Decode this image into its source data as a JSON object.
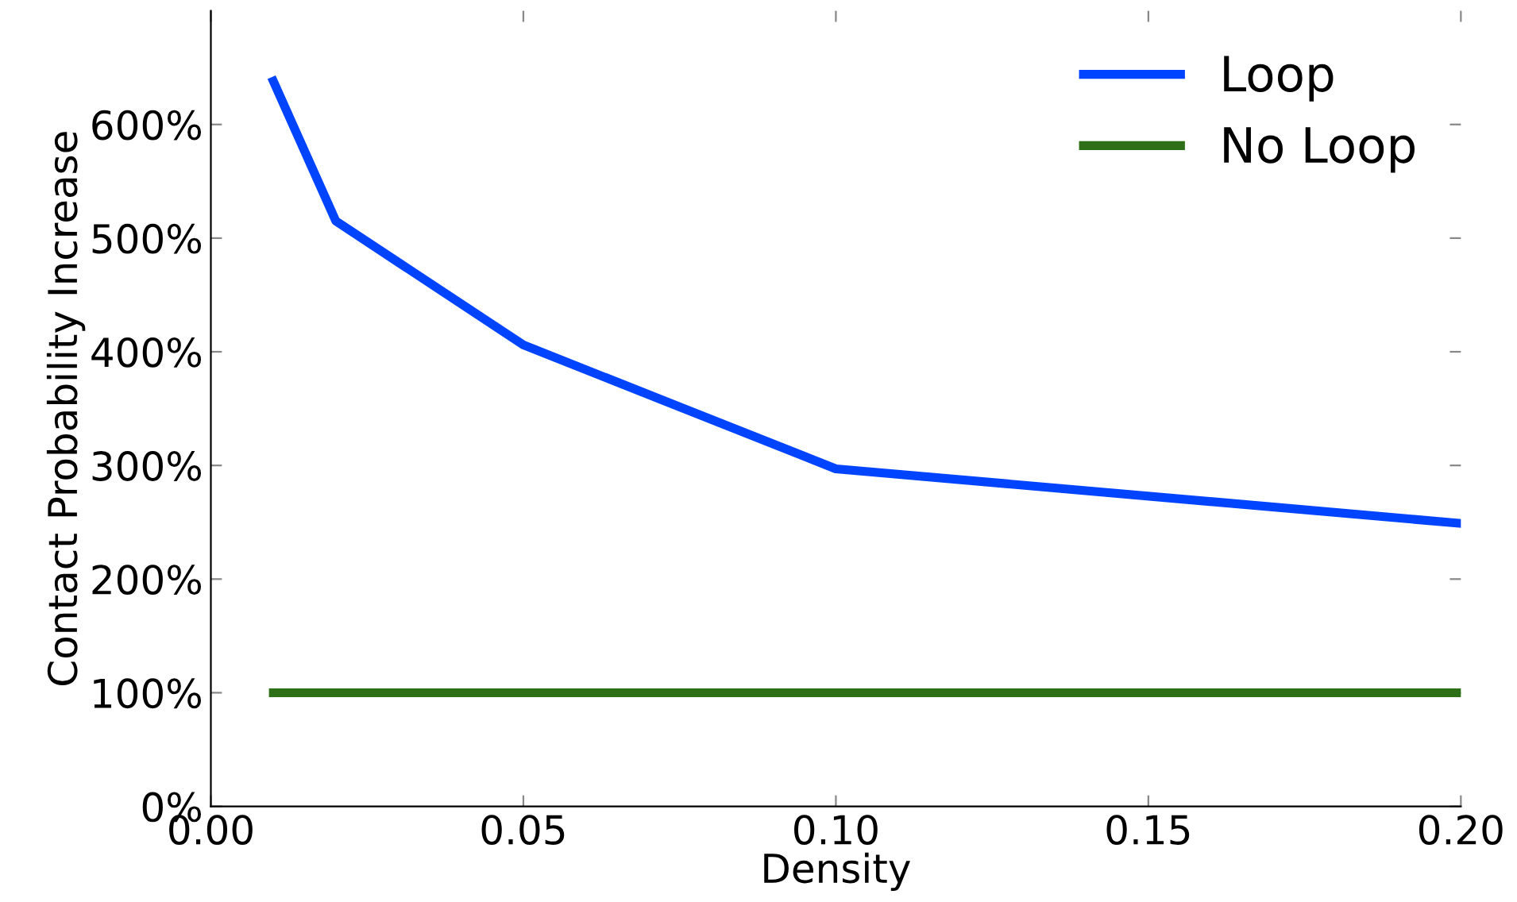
{
  "chart_data": {
    "type": "line",
    "xlabel": "Density",
    "ylabel": "Contact Probability Increase",
    "x": [
      0.01,
      0.02,
      0.05,
      0.1,
      0.2
    ],
    "series": [
      {
        "name": "Loop",
        "color": "#0044ff",
        "values": [
          638,
          515,
          406,
          297,
          249
        ]
      },
      {
        "name": "No Loop",
        "color": "#2e7018",
        "values": [
          100,
          100,
          100,
          100,
          100
        ]
      }
    ],
    "xlim": [
      0,
      0.2
    ],
    "xticks": [
      {
        "value": 0,
        "label": "0.00"
      },
      {
        "value": 0.05,
        "label": "0.05"
      },
      {
        "value": 0.1,
        "label": "0.10"
      },
      {
        "value": 0.15,
        "label": "0.15"
      },
      {
        "value": 0.2,
        "label": "0.20"
      }
    ],
    "ylim": [
      0,
      700
    ],
    "yticks": [
      {
        "value": 0,
        "label": "0%"
      },
      {
        "value": 100,
        "label": "100%"
      },
      {
        "value": 200,
        "label": "200%"
      },
      {
        "value": 300,
        "label": "300%"
      },
      {
        "value": 400,
        "label": "400%"
      },
      {
        "value": 500,
        "label": "500%"
      },
      {
        "value": 600,
        "label": "600%"
      }
    ],
    "legend": "top right",
    "grid": false,
    "line_style": "solid"
  }
}
